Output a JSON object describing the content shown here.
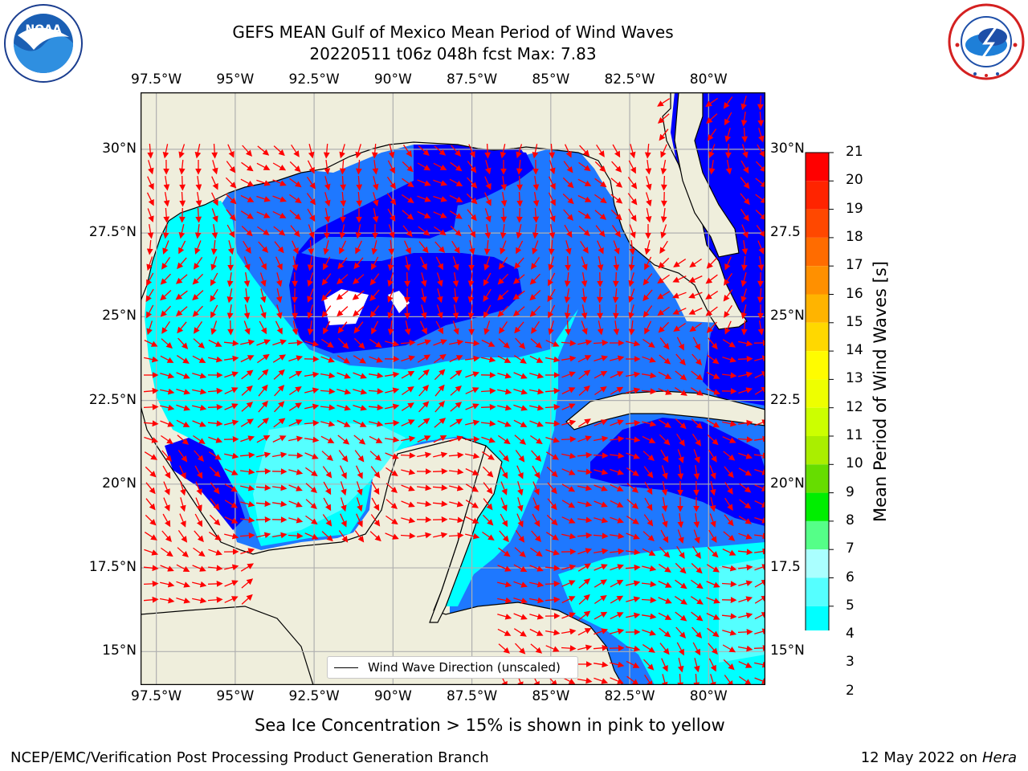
{
  "title": {
    "line1": "GEFS MEAN Gulf of Mexico Mean Period of Wind Waves",
    "line2": "20220511 t06z 048h fcst   Max: 7.83"
  },
  "axes": {
    "lon_labels": [
      "97.5°W",
      "95°W",
      "92.5°W",
      "90°W",
      "87.5°W",
      "85°W",
      "82.5°W",
      "80°W"
    ],
    "lat_labels_left": [
      "30°N",
      "27.5°N",
      "25°N",
      "22.5°N",
      "20°N",
      "17.5°N",
      "15°N"
    ],
    "lat_labels_right": [
      "30°N",
      "27.5",
      "25°N",
      "22.5",
      "20°N",
      "17.5",
      "15°N"
    ],
    "lon_range": [
      -98,
      -78.2
    ],
    "lat_range": [
      14,
      31.7
    ]
  },
  "colorbar": {
    "title": "Mean Period of Wind Waves [s]",
    "ticks": [
      "21",
      "20",
      "19",
      "18",
      "17",
      "16",
      "15",
      "14",
      "13",
      "12",
      "11",
      "10",
      "9",
      "8",
      "7",
      "6",
      "5",
      "4",
      "3",
      "2"
    ],
    "colors": [
      "#ff0000",
      "#ff2400",
      "#ff4800",
      "#ff6c00",
      "#ff9000",
      "#ffb400",
      "#ffd800",
      "#fffc00",
      "#eeff00",
      "#ccff00",
      "#aaee00",
      "#66dd00",
      "#00ee00",
      "#55ff88",
      "#aaffff",
      "#55ffff",
      "#00ffff",
      "#00ddff",
      "#00aaff",
      "#0066ff"
    ],
    "extend_color": "#0000ff"
  },
  "legend": {
    "label": "Wind Wave Direction (unscaled)"
  },
  "caption": "Sea Ice Concentration > 15% is shown in pink to yellow",
  "footer": {
    "left": "NCEP/EMC/Verification Post Processing Product Generation Branch",
    "right_prefix": "12 May 2022 on",
    "right_host": "Hera"
  },
  "colors": {
    "land": "#efeedc",
    "coast": "#000000",
    "grid": "#b0b0b0",
    "arrow": "#ff0000",
    "blue_dark": "#0000ff",
    "blue_mid": "#1e78ff",
    "cyan": "#00ffff",
    "cyan_light": "#55ffff"
  },
  "logos": {
    "noaa_text": "NOAA",
    "noaa_ring": "NATIONAL OCEANIC AND ATMOSPHERIC ADMINISTRATION · U.S. DEPARTMENT OF COMMERCE",
    "nws_ring": "NATIONAL WEATHER SERVICE"
  }
}
